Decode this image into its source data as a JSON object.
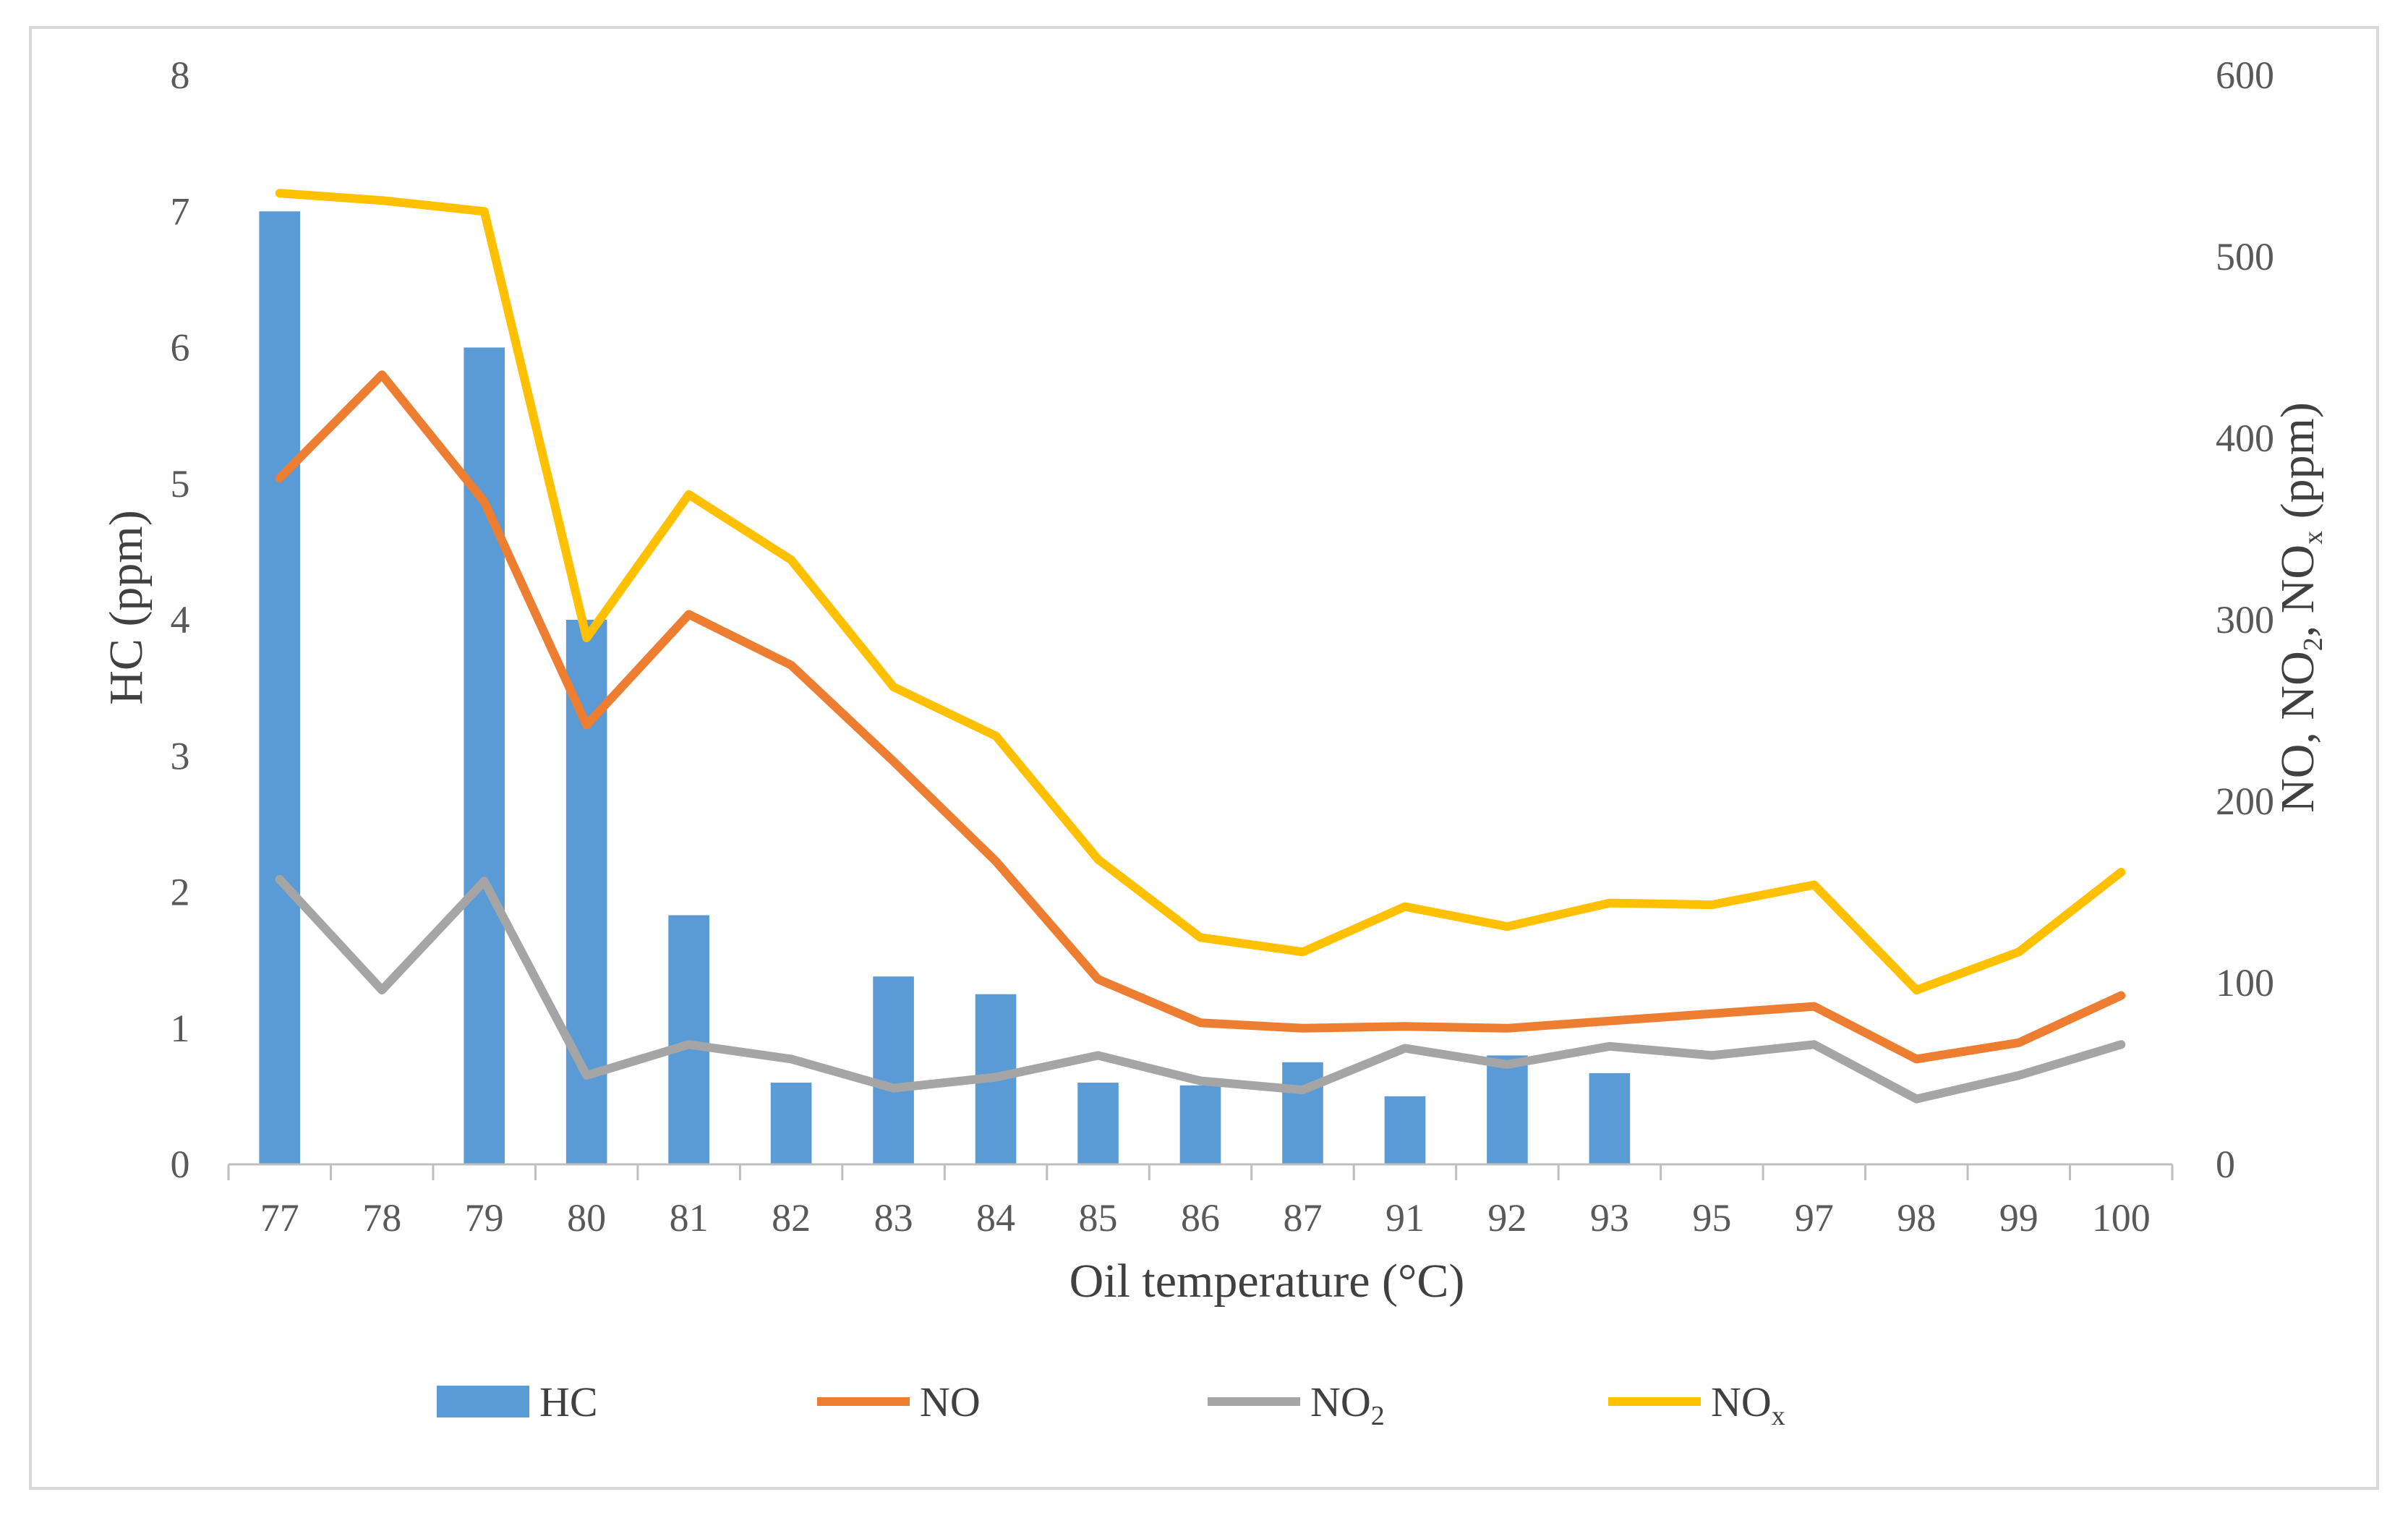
{
  "chart_data": {
    "type": "bar+line (dual axis)",
    "categories": [
      "77",
      "78",
      "79",
      "80",
      "81",
      "82",
      "83",
      "84",
      "85",
      "86",
      "87",
      "91",
      "92",
      "93",
      "95",
      "97",
      "98",
      "99",
      "100"
    ],
    "xlabel": "Oil temperature (°C)",
    "ylabel_left": "HC (ppm)",
    "ylabel_right": "NO, NO2, NOx (ppm)",
    "ylim_left": [
      0,
      8
    ],
    "ylim_right": [
      0,
      600
    ],
    "yticks_left": [
      "0",
      "1",
      "2",
      "3",
      "4",
      "5",
      "6",
      "7",
      "8"
    ],
    "yticks_right": [
      "0",
      "100",
      "200",
      "300",
      "400",
      "500",
      "600"
    ],
    "grid": false,
    "legend_position": "bottom",
    "series": [
      {
        "name": "HC",
        "type": "bar",
        "axis": "left",
        "color": "#5B9BD5",
        "values": [
          7.0,
          0,
          6.0,
          4.0,
          1.83,
          0.6,
          1.38,
          1.25,
          0.6,
          0.58,
          0.75,
          0.5,
          0.8,
          0.67,
          0,
          0,
          0,
          0,
          0
        ]
      },
      {
        "name": "NO",
        "type": "line",
        "axis": "right",
        "color": "#ED7D31",
        "values": [
          378,
          435,
          365,
          242,
          303,
          275,
          222,
          167,
          102,
          78,
          75,
          76,
          75,
          79,
          83,
          87,
          58,
          67,
          93
        ]
      },
      {
        "name": "NO2",
        "type": "line",
        "axis": "right",
        "color": "#A5A5A5",
        "values": [
          157,
          96,
          156,
          49,
          66,
          58,
          42,
          48,
          60,
          46,
          41,
          64,
          55,
          65,
          60,
          66,
          36,
          49,
          66
        ]
      },
      {
        "name": "NOx",
        "type": "line",
        "axis": "right",
        "color": "#FFC000",
        "values": [
          535,
          531,
          525,
          290,
          369,
          333,
          263,
          236,
          168,
          125,
          117,
          142,
          131,
          144,
          143,
          154,
          96,
          117,
          161
        ]
      }
    ],
    "legend": [
      {
        "key": "hc",
        "label": "HC",
        "sub": ""
      },
      {
        "key": "no",
        "label": "NO",
        "sub": ""
      },
      {
        "key": "no2",
        "label": "NO",
        "sub": "2"
      },
      {
        "key": "nox",
        "label": "NO",
        "sub": "x"
      }
    ]
  }
}
